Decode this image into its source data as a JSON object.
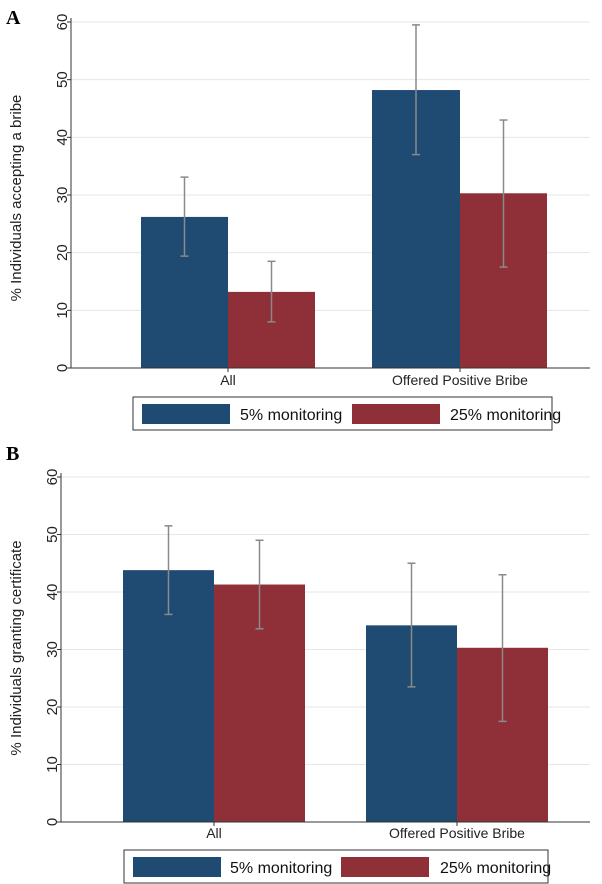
{
  "colors": {
    "series1": "#1f4a72",
    "series2": "#8f3039",
    "errorbar": "#8a8a8a",
    "grid": "#e6e6e6",
    "axis": "#333333"
  },
  "chart_data": [
    {
      "panel": "A",
      "type": "bar",
      "ylabel": "% Individuals accepting a bribe",
      "ylim": [
        0,
        60
      ],
      "yticks": [
        0,
        10,
        20,
        30,
        40,
        50,
        60
      ],
      "grid": true,
      "legend": "bottom",
      "categories": [
        "All",
        "Offered Positive Bribe"
      ],
      "series": [
        {
          "name": "5% monitoring",
          "values": [
            26.2,
            48.2
          ],
          "err_low": [
            19.4,
            37.0
          ],
          "err_high": [
            33.1,
            59.5
          ]
        },
        {
          "name": "25% monitoring",
          "values": [
            13.2,
            30.3
          ],
          "err_low": [
            8.0,
            17.5
          ],
          "err_high": [
            18.5,
            43.0
          ]
        }
      ]
    },
    {
      "panel": "B",
      "type": "bar",
      "ylabel": "% Individuals granting certificate",
      "ylim": [
        0,
        60
      ],
      "yticks": [
        0,
        10,
        20,
        30,
        40,
        50,
        60
      ],
      "grid": true,
      "legend": "bottom",
      "categories": [
        "All",
        "Offered Positive Bribe"
      ],
      "series": [
        {
          "name": "5% monitoring",
          "values": [
            43.8,
            34.2
          ],
          "err_low": [
            36.1,
            23.5
          ],
          "err_high": [
            51.5,
            45.0
          ]
        },
        {
          "name": "25% monitoring",
          "values": [
            41.3,
            30.3
          ],
          "err_low": [
            33.6,
            17.5
          ],
          "err_high": [
            49.0,
            43.0
          ]
        }
      ]
    }
  ]
}
